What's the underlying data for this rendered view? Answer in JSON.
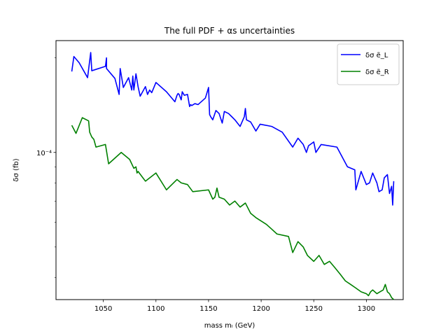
{
  "chart_data": {
    "type": "line",
    "title": "The full PDF + αs uncertainties",
    "xlabel": "mass mₗ (GeV)",
    "ylabel": "δσ (fb)",
    "xlim": [
      1005,
      1335
    ],
    "ylim": [
      3.4e-05,
      0.000227
    ],
    "yscale": "log",
    "grid": false,
    "legend_position": "top-right",
    "x_ticks": [
      {
        "value": 1050,
        "label": "1050"
      },
      {
        "value": 1100,
        "label": "1100"
      },
      {
        "value": 1150,
        "label": "1150"
      },
      {
        "value": 1200,
        "label": "1200"
      },
      {
        "value": 1250,
        "label": "1250"
      },
      {
        "value": 1300,
        "label": "1300"
      }
    ],
    "y_ticks": [
      {
        "value": 0.0001,
        "label": "10⁻⁴"
      }
    ],
    "series": [
      {
        "name": "δσ ẽ_L",
        "color": "#0000ff",
        "points": [
          [
            1020,
            0.000181
          ],
          [
            1022,
            0.000202
          ],
          [
            1027,
            0.000193
          ],
          [
            1035,
            0.000173
          ],
          [
            1038,
            0.000208
          ],
          [
            1039,
            0.000182
          ],
          [
            1052,
            0.000188
          ],
          [
            1053,
            0.0002
          ],
          [
            1053,
            0.000185
          ],
          [
            1061,
            0.000172
          ],
          [
            1065,
            0.000153
          ],
          [
            1066,
            0.000185
          ],
          [
            1069,
            0.000161
          ],
          [
            1074,
            0.000173
          ],
          [
            1077,
            0.000158
          ],
          [
            1078,
            0.000175
          ],
          [
            1079,
            0.000158
          ],
          [
            1081,
            0.000178
          ],
          [
            1083,
            0.000162
          ],
          [
            1085,
            0.000151
          ],
          [
            1090,
            0.000162
          ],
          [
            1092,
            0.000153
          ],
          [
            1094,
            0.000158
          ],
          [
            1096,
            0.000155
          ],
          [
            1100,
            0.000167
          ],
          [
            1110,
            0.000156
          ],
          [
            1118,
            0.000145
          ],
          [
            1120,
            0.000152
          ],
          [
            1121,
            0.000154
          ],
          [
            1122,
            0.000153
          ],
          [
            1124,
            0.000147
          ],
          [
            1125,
            0.000156
          ],
          [
            1127,
            0.000152
          ],
          [
            1130,
            0.000153
          ],
          [
            1132,
            0.00014
          ],
          [
            1133,
            0.000142
          ],
          [
            1134,
            0.000141
          ],
          [
            1137,
            0.000143
          ],
          [
            1140,
            0.000142
          ],
          [
            1147,
            0.000149
          ],
          [
            1150,
            0.000161
          ],
          [
            1151,
            0.000132
          ],
          [
            1152,
            0.00013
          ],
          [
            1154,
            0.000127
          ],
          [
            1157,
            0.000136
          ],
          [
            1160,
            0.000133
          ],
          [
            1163,
            0.000124
          ],
          [
            1165,
            0.000135
          ],
          [
            1169,
            0.000133
          ],
          [
            1172,
            0.00013
          ],
          [
            1175,
            0.000127
          ],
          [
            1180,
            0.000121
          ],
          [
            1184,
            0.00013
          ],
          [
            1185,
            0.000138
          ],
          [
            1186,
            0.000127
          ],
          [
            1190,
            0.000125
          ],
          [
            1195,
            0.000117
          ],
          [
            1199,
            0.000123
          ],
          [
            1210,
            0.000121
          ],
          [
            1220,
            0.000116
          ],
          [
            1230,
            0.000104
          ],
          [
            1235,
            0.000111
          ],
          [
            1240,
            0.000106
          ],
          [
            1243,
            0.0001
          ],
          [
            1245,
            0.000105
          ],
          [
            1250,
            0.000108
          ],
          [
            1252,
            0.0001
          ],
          [
            1257,
            0.000106
          ],
          [
            1272,
            0.000104
          ],
          [
            1282,
            9e-05
          ],
          [
            1289,
            8.8e-05
          ],
          [
            1290,
            7.6e-05
          ],
          [
            1295,
            8.7e-05
          ],
          [
            1300,
            7.9e-05
          ],
          [
            1303,
            8e-05
          ],
          [
            1306,
            8.6e-05
          ],
          [
            1310,
            8e-05
          ],
          [
            1312,
            7.5e-05
          ],
          [
            1315,
            7.6e-05
          ],
          [
            1317,
            8.3e-05
          ],
          [
            1320,
            8.5e-05
          ],
          [
            1322,
            7.4e-05
          ],
          [
            1324,
            7.8e-05
          ],
          [
            1325,
            6.8e-05
          ],
          [
            1326,
            8.1e-05
          ]
        ]
      },
      {
        "name": "δσ ẽ_R",
        "color": "#008000",
        "points": [
          [
            1020,
            0.000122
          ],
          [
            1024,
            0.000115
          ],
          [
            1030,
            0.000129
          ],
          [
            1036,
            0.000126
          ],
          [
            1037,
            0.000116
          ],
          [
            1039,
            0.000112
          ],
          [
            1041,
            0.00011
          ],
          [
            1043,
            0.000104
          ],
          [
            1052,
            0.000106
          ],
          [
            1055,
            9.2e-05
          ],
          [
            1067,
            0.0001
          ],
          [
            1075,
            9.5e-05
          ],
          [
            1079,
            8.9e-05
          ],
          [
            1081,
            9e-05
          ],
          [
            1082,
            8.6e-05
          ],
          [
            1083,
            8.7e-05
          ],
          [
            1090,
            8.1e-05
          ],
          [
            1100,
            8.6e-05
          ],
          [
            1110,
            7.6e-05
          ],
          [
            1120,
            8.2e-05
          ],
          [
            1124,
            8e-05
          ],
          [
            1130,
            7.9e-05
          ],
          [
            1135,
            7.5e-05
          ],
          [
            1150,
            7.6e-05
          ],
          [
            1154,
            7.1e-05
          ],
          [
            1156,
            7.2e-05
          ],
          [
            1158,
            7.7e-05
          ],
          [
            1160,
            7.2e-05
          ],
          [
            1165,
            7.1e-05
          ],
          [
            1170,
            6.8e-05
          ],
          [
            1175,
            7e-05
          ],
          [
            1180,
            6.7e-05
          ],
          [
            1185,
            6.9e-05
          ],
          [
            1190,
            6.4e-05
          ],
          [
            1195,
            6.2e-05
          ],
          [
            1205,
            5.9e-05
          ],
          [
            1210,
            5.7e-05
          ],
          [
            1215,
            5.5e-05
          ],
          [
            1226,
            5.4e-05
          ],
          [
            1230,
            4.8e-05
          ],
          [
            1235,
            5.2e-05
          ],
          [
            1240,
            5e-05
          ],
          [
            1244,
            4.7e-05
          ],
          [
            1250,
            4.5e-05
          ],
          [
            1255,
            4.7e-05
          ],
          [
            1260,
            4.4e-05
          ],
          [
            1265,
            4.5e-05
          ],
          [
            1270,
            4.3e-05
          ],
          [
            1275,
            4.1e-05
          ],
          [
            1280,
            3.9e-05
          ],
          [
            1285,
            3.8e-05
          ],
          [
            1290,
            3.7e-05
          ],
          [
            1295,
            3.6e-05
          ],
          [
            1300,
            3.55e-05
          ],
          [
            1302,
            3.5e-05
          ],
          [
            1304,
            3.6e-05
          ],
          [
            1306,
            3.65e-05
          ],
          [
            1308,
            3.6e-05
          ],
          [
            1310,
            3.55e-05
          ],
          [
            1313,
            3.6e-05
          ],
          [
            1316,
            3.65e-05
          ],
          [
            1318,
            3.8e-05
          ],
          [
            1320,
            3.6e-05
          ],
          [
            1322,
            3.55e-05
          ],
          [
            1324,
            3.45e-05
          ],
          [
            1326,
            3.4e-05
          ]
        ]
      }
    ]
  }
}
